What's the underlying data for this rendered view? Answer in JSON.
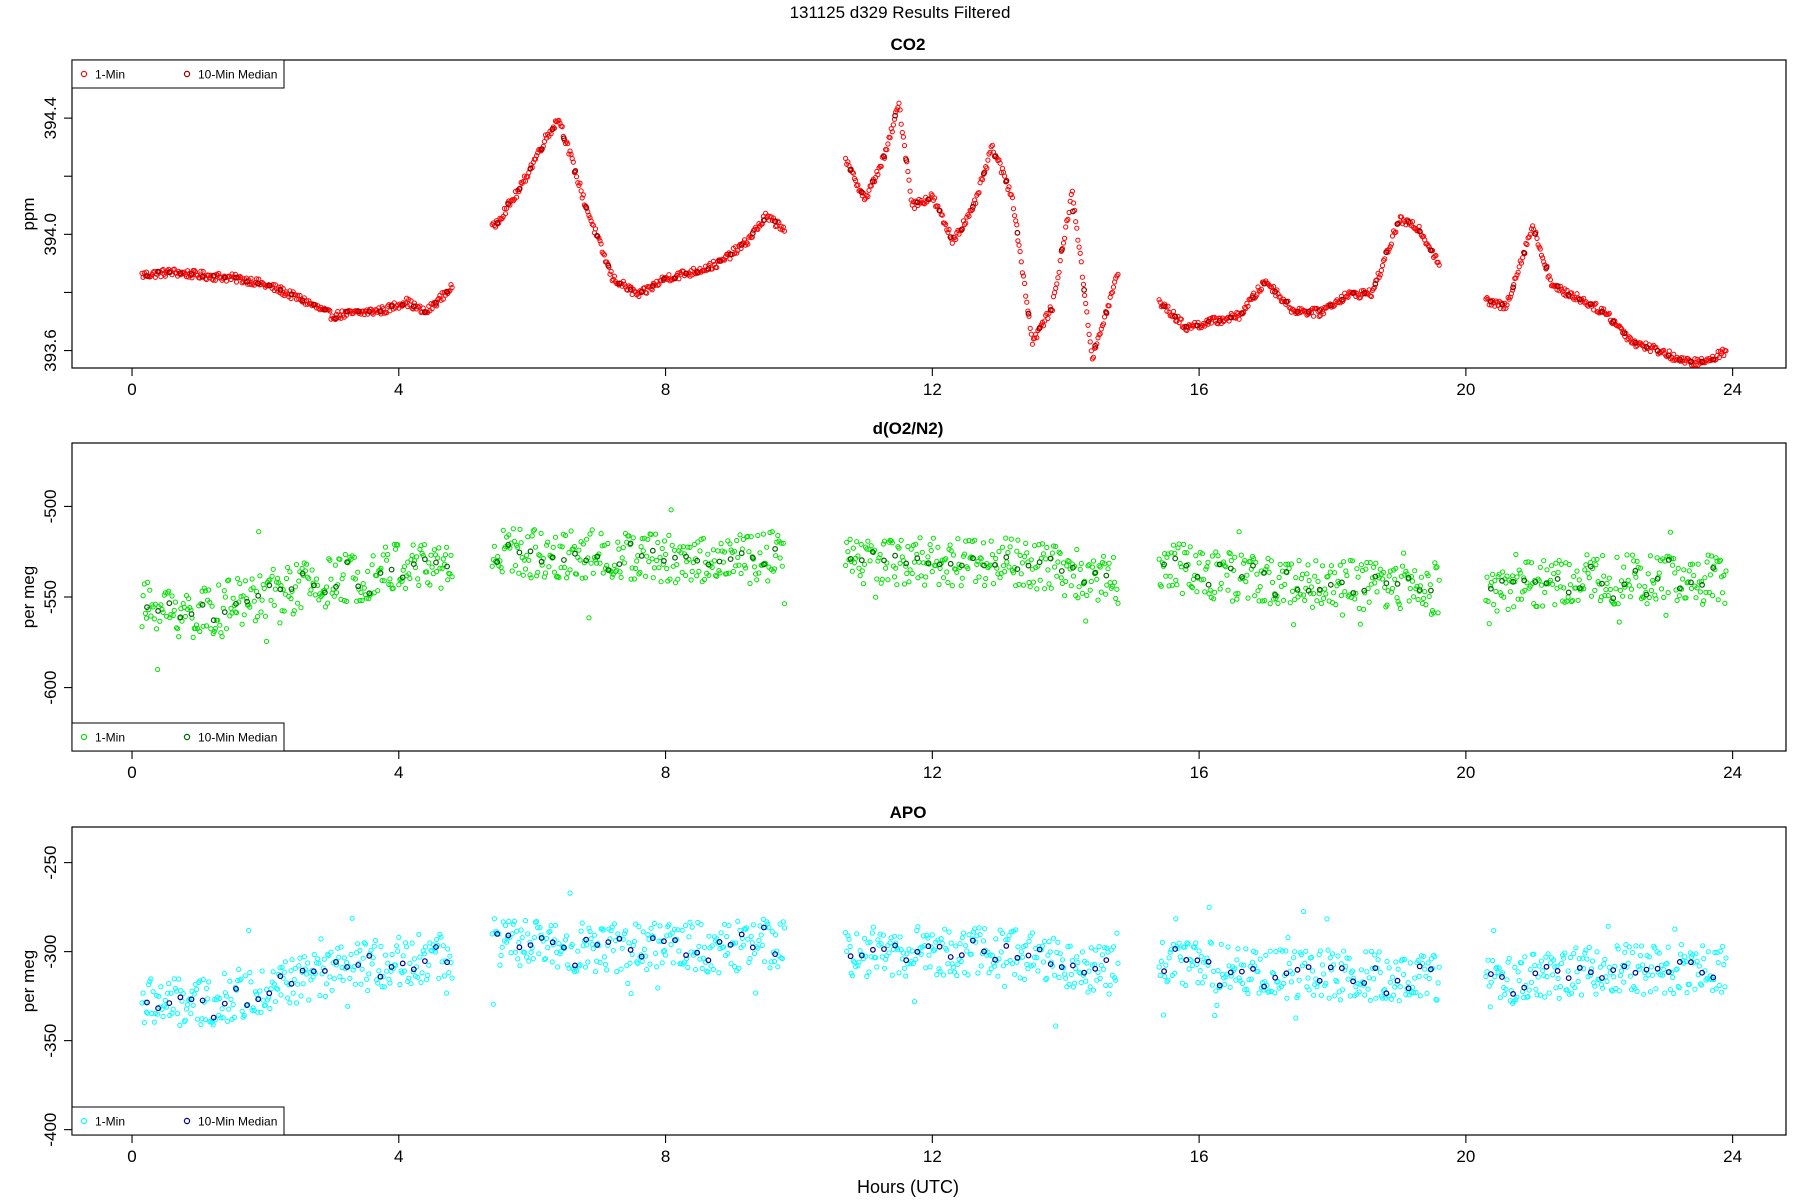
{
  "figure": {
    "title": "131125   d329   Results Filtered",
    "xlabel": "Hours (UTC)"
  },
  "chart_data": [
    {
      "type": "scatter",
      "title": "CO2",
      "ylabel": "ppm",
      "xlim": [
        -0.9,
        24.8
      ],
      "ylim": [
        393.54,
        393.66
      ],
      "xticks": [
        "0",
        "4",
        "8",
        "12",
        "16",
        "20",
        "24"
      ],
      "xtick_values": [
        0,
        4,
        8,
        12,
        16,
        20,
        24
      ],
      "yticks": [
        "393.6",
        "394.0",
        "394.4"
      ],
      "ytick_values": [
        393.6,
        394.0,
        394.4
      ],
      "y_minor_ticks": [
        393.8,
        394.2
      ],
      "legend": {
        "position": "top-left",
        "entries": [
          "1-Min",
          "10-Min Median"
        ]
      },
      "series": [
        {
          "name": "1-Min",
          "color": "#ff0000",
          "segments": [
            [
              0.15,
              4.8
            ],
            [
              5.4,
              9.8
            ],
            [
              10.7,
              14.8
            ],
            [
              15.4,
              19.6
            ],
            [
              20.3,
              23.9
            ]
          ],
          "anchors": {
            "x": [
              0.15,
              0.6,
              1.0,
              1.5,
              1.8,
              2.2,
              2.6,
              3.0,
              3.4,
              3.8,
              4.1,
              4.4,
              4.8,
              5.4,
              5.8,
              6.2,
              6.4,
              6.8,
              7.2,
              7.6,
              8.0,
              8.4,
              8.8,
              9.2,
              9.5,
              9.8,
              10.7,
              11.0,
              11.3,
              11.5,
              11.7,
              12.0,
              12.3,
              12.6,
              12.9,
              13.2,
              13.5,
              13.8,
              14.1,
              14.4,
              14.8,
              15.4,
              15.8,
              16.2,
              16.6,
              17.0,
              17.4,
              17.8,
              18.2,
              18.6,
              19.0,
              19.3,
              19.6,
              20.3,
              20.6,
              21.0,
              21.3,
              21.7,
              22.1,
              22.5,
              22.9,
              23.3,
              23.6,
              23.9
            ],
            "y": [
              393.86,
              393.87,
              393.86,
              393.85,
              393.84,
              393.81,
              393.77,
              393.72,
              393.73,
              393.74,
              393.77,
              393.73,
              393.82,
              394.02,
              394.15,
              394.33,
              394.4,
              394.1,
              393.85,
              393.79,
              393.85,
              393.87,
              393.9,
              393.97,
              394.06,
              394.02,
              394.25,
              394.12,
              394.28,
              394.45,
              394.1,
              394.13,
              393.98,
              394.08,
              394.3,
              394.13,
              393.63,
              393.75,
              394.15,
              393.57,
              393.88,
              393.77,
              393.68,
              393.7,
              393.72,
              393.84,
              393.74,
              393.73,
              393.79,
              393.8,
              394.05,
              394.02,
              393.9,
              393.77,
              393.75,
              394.03,
              393.82,
              393.78,
              393.73,
              393.63,
              393.6,
              393.56,
              393.56,
              393.6
            ]
          },
          "noise": 0.04
        },
        {
          "name": "10-Min Median",
          "color": "#8b0000",
          "derived": "median"
        }
      ]
    },
    {
      "type": "scatter",
      "title": "d(O2/N2)",
      "ylabel": "per meg",
      "xlim": [
        -0.9,
        24.8
      ],
      "ylim": [
        -635,
        -465
      ],
      "xticks": [
        "0",
        "4",
        "8",
        "12",
        "16",
        "20",
        "24"
      ],
      "xtick_values": [
        0,
        4,
        8,
        12,
        16,
        20,
        24
      ],
      "yticks": [
        "-600",
        "-550",
        "-500"
      ],
      "ytick_values": [
        -600,
        -550,
        -500
      ],
      "legend": {
        "position": "bottom-left",
        "entries": [
          "1-Min",
          "10-Min Median"
        ]
      },
      "series": [
        {
          "name": "1-Min",
          "color": "#00e000",
          "segments": [
            [
              0.15,
              4.8
            ],
            [
              5.4,
              9.8
            ],
            [
              10.7,
              14.8
            ],
            [
              15.4,
              19.6
            ],
            [
              20.3,
              23.9
            ]
          ],
          "anchors": {
            "x": [
              0.15,
              1.0,
              2.0,
              3.0,
              4.0,
              4.8,
              5.4,
              7.0,
              9.0,
              9.8,
              10.7,
              13.0,
              14.8,
              15.4,
              17.0,
              19.6,
              20.3,
              22.0,
              23.9
            ],
            "y": [
              -555,
              -560,
              -548,
              -542,
              -533,
              -532,
              -525,
              -527,
              -530,
              -527,
              -530,
              -530,
              -540,
              -532,
              -542,
              -545,
              -545,
              -540,
              -540
            ]
          },
          "noise": 14
        },
        {
          "name": "10-Min Median",
          "color": "#006400",
          "derived": "median"
        }
      ]
    },
    {
      "type": "scatter",
      "title": "APO",
      "ylabel": "per meg",
      "xlim": [
        -0.9,
        24.8
      ],
      "ylim": [
        -403,
        -230
      ],
      "xticks": [
        "0",
        "4",
        "8",
        "12",
        "16",
        "20",
        "24"
      ],
      "xtick_values": [
        0,
        4,
        8,
        12,
        16,
        20,
        24
      ],
      "yticks": [
        "-400",
        "-350",
        "-300",
        "-250"
      ],
      "ytick_values": [
        -400,
        -350,
        -300,
        -250
      ],
      "legend": {
        "position": "bottom-left",
        "entries": [
          "1-Min",
          "10-Min Median"
        ]
      },
      "series": [
        {
          "name": "1-Min",
          "color": "#00ffff",
          "segments": [
            [
              0.15,
              4.8
            ],
            [
              5.4,
              9.8
            ],
            [
              10.7,
              14.8
            ],
            [
              15.4,
              19.6
            ],
            [
              20.3,
              23.9
            ]
          ],
          "anchors": {
            "x": [
              0.15,
              1.0,
              2.0,
              3.0,
              4.0,
              4.8,
              5.4,
              7.0,
              9.0,
              9.8,
              10.7,
              13.0,
              14.8,
              15.4,
              17.0,
              19.6,
              20.3,
              22.0,
              23.9
            ],
            "y": [
              -328,
              -330,
              -320,
              -312,
              -305,
              -302,
              -295,
              -298,
              -298,
              -296,
              -300,
              -300,
              -312,
              -305,
              -312,
              -315,
              -318,
              -310,
              -310
            ]
          },
          "noise": 14
        },
        {
          "name": "10-Min Median",
          "color": "#00008b",
          "derived": "median"
        }
      ]
    }
  ]
}
